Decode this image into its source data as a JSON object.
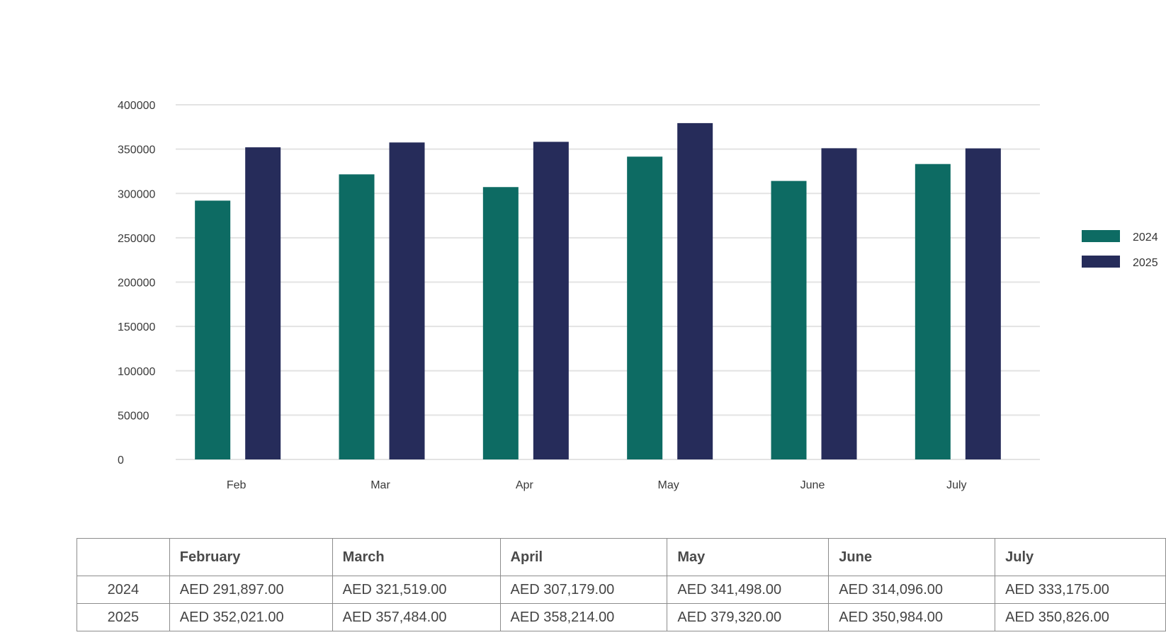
{
  "colors": {
    "series_2024": "#0d6b63",
    "series_2025": "#262c5a",
    "grid": "#e3e3e3",
    "table_border": "#8c8c8c"
  },
  "chart_data": {
    "type": "bar",
    "categories": [
      "Feb",
      "Mar",
      "Apr",
      "May",
      "June",
      "July"
    ],
    "series": [
      {
        "name": "2024",
        "values": [
          291897,
          321519,
          307179,
          341498,
          314096,
          333175
        ]
      },
      {
        "name": "2025",
        "values": [
          352021,
          357484,
          358214,
          379320,
          350984,
          350826
        ]
      }
    ],
    "y_ticks": [
      "0",
      "50000",
      "100000",
      "150000",
      "200000",
      "250000",
      "300000",
      "350000",
      "400000"
    ],
    "ylim": [
      0,
      400000
    ],
    "grid": true,
    "legend_position": "right"
  },
  "table": {
    "corner": "",
    "headers": [
      "February",
      "March",
      "April",
      "May",
      "June",
      "July"
    ],
    "rows": [
      {
        "label": "2024",
        "cells": [
          "AED 291,897.00",
          "AED 321,519.00",
          "AED 307,179.00",
          "AED 341,498.00",
          "AED 314,096.00",
          "AED 333,175.00"
        ]
      },
      {
        "label": "2025",
        "cells": [
          "AED 352,021.00",
          "AED 357,484.00",
          "AED 358,214.00",
          "AED 379,320.00",
          "AED 350,984.00",
          "AED 350,826.00"
        ]
      }
    ]
  }
}
